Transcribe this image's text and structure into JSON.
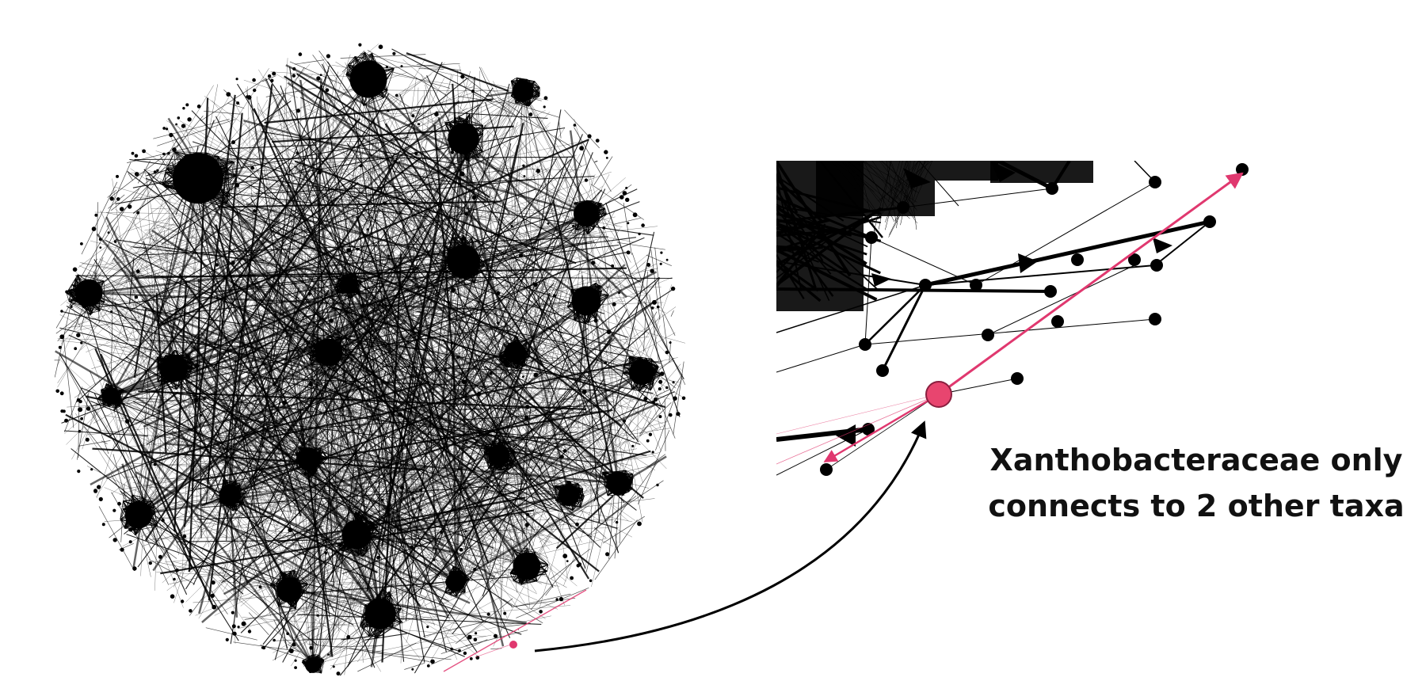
{
  "caption": {
    "line1": "Xanthobacteraceae only",
    "line2": "connects to 2 other taxa"
  },
  "colors": {
    "background": "#ffffff",
    "network": "#000000",
    "highlight": "#e0386f",
    "highlight_node": "#e8456f",
    "highlight_node_border": "#8a1f3f",
    "text": "#111111"
  },
  "highlight": {
    "taxon": "Xanthobacteraceae",
    "connection_count": 2
  }
}
